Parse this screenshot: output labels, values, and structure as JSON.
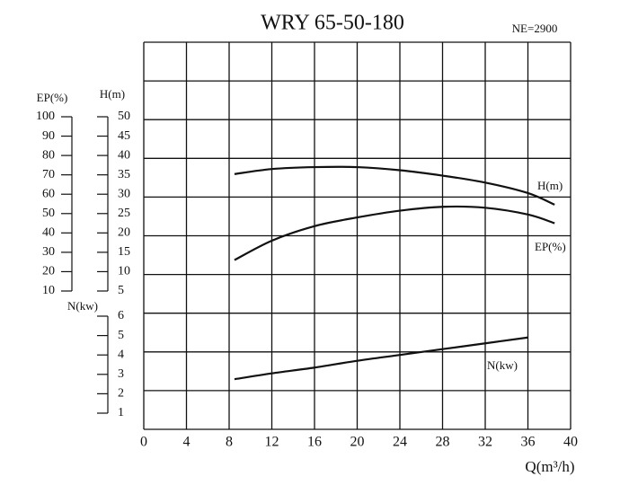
{
  "chart_data": {
    "type": "line",
    "title": "WRY 65-50-180",
    "subtitle": "NE=2900",
    "xlabel": "Q(m³/h)",
    "ylabel": "H(m)",
    "y2label": "EP(%)",
    "y3label": "N(kw)",
    "x": [
      8.5,
      12,
      16,
      20,
      24,
      28,
      32,
      36,
      38.5
    ],
    "xlim": [
      0,
      40
    ],
    "xticks": [
      0,
      4,
      8,
      12,
      16,
      20,
      24,
      28,
      32,
      36,
      40
    ],
    "ylim": [
      5,
      50
    ],
    "yticks": [
      5,
      10,
      15,
      20,
      25,
      30,
      35,
      40,
      45,
      50
    ],
    "y2lim": [
      10,
      100
    ],
    "y2ticks": [
      10,
      20,
      30,
      40,
      50,
      60,
      70,
      80,
      90,
      100
    ],
    "y3lim": [
      1,
      6
    ],
    "y3ticks": [
      1,
      2,
      3,
      4,
      5,
      6
    ],
    "grid": true,
    "series": [
      {
        "name": "H(m)",
        "axis": "y",
        "color": "#111111",
        "values": [
          35.2,
          36.5,
          37,
          37,
          36.2,
          34.8,
          33,
          30.3,
          27.3
        ]
      },
      {
        "name": "EP(%)",
        "axis": "y2",
        "color": "#111111",
        "values": [
          26,
          36,
          43.5,
          48,
          51.5,
          53.5,
          53,
          49.5,
          45
        ]
      },
      {
        "name": "N(kw)",
        "axis": "y3",
        "color": "#111111",
        "values": [
          2.75,
          3.05,
          3.35,
          3.7,
          4.0,
          4.3,
          4.6,
          4.9,
          null
        ]
      }
    ]
  }
}
